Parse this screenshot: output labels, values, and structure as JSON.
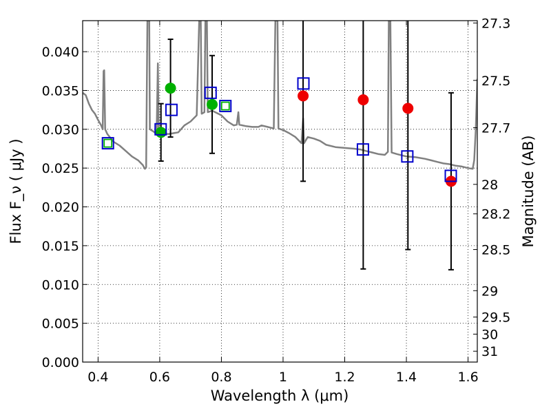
{
  "chart_data": {
    "type": "scatter",
    "xlabel": "Wavelength  λ (μm)",
    "ylabel": "Flux  F_ν  ( μJy )",
    "y2label": "Magnitude (AB)",
    "xlim": [
      0.35,
      1.63
    ],
    "ylim": [
      0.0,
      0.044
    ],
    "grid": true,
    "xticks": [
      0.4,
      0.6,
      0.8,
      1.0,
      1.2,
      1.4,
      1.6
    ],
    "xtick_labels": [
      "0.4",
      "0.6",
      "0.8",
      "1",
      "1.2",
      "1.4",
      "1.6"
    ],
    "yticks": [
      0.0,
      0.005,
      0.01,
      0.015,
      0.02,
      0.025,
      0.03,
      0.035,
      0.04
    ],
    "ytick_labels": [
      "0.000",
      "0.005",
      "0.010",
      "0.015",
      "0.020",
      "0.025",
      "0.030",
      "0.035",
      "0.040"
    ],
    "y2ticks": [
      {
        "flux": 0.0437,
        "label": "27.3"
      },
      {
        "flux": 0.0363,
        "label": "27.5"
      },
      {
        "flux": 0.0302,
        "label": "27.7"
      },
      {
        "flux": 0.0229,
        "label": "28"
      },
      {
        "flux": 0.0191,
        "label": "28.2"
      },
      {
        "flux": 0.0145,
        "label": "28.5"
      },
      {
        "flux": 0.0092,
        "label": "29"
      },
      {
        "flux": 0.0058,
        "label": "29.5"
      },
      {
        "flux": 0.0036,
        "label": "30"
      },
      {
        "flux": 0.0014,
        "label": "31"
      }
    ],
    "colors": {
      "model": "#808080",
      "green": "#00b000",
      "red": "#ee0000",
      "box": "#0000cc",
      "err": "#000000"
    },
    "model_sed": [
      [
        0.35,
        0.0347
      ],
      [
        0.36,
        0.0344
      ],
      [
        0.37,
        0.0333
      ],
      [
        0.38,
        0.0325
      ],
      [
        0.39,
        0.032
      ],
      [
        0.4,
        0.0312
      ],
      [
        0.41,
        0.0305
      ],
      [
        0.415,
        0.03
      ],
      [
        0.418,
        0.0375
      ],
      [
        0.42,
        0.0376
      ],
      [
        0.423,
        0.03
      ],
      [
        0.43,
        0.0294
      ],
      [
        0.45,
        0.0284
      ],
      [
        0.47,
        0.0279
      ],
      [
        0.49,
        0.0272
      ],
      [
        0.51,
        0.0265
      ],
      [
        0.53,
        0.026
      ],
      [
        0.545,
        0.0254
      ],
      [
        0.552,
        0.0249
      ],
      [
        0.556,
        0.0251
      ],
      [
        0.56,
        0.044
      ],
      [
        0.566,
        0.044
      ],
      [
        0.568,
        0.03
      ],
      [
        0.58,
        0.0297
      ],
      [
        0.59,
        0.0294
      ],
      [
        0.594,
        0.0385
      ],
      [
        0.597,
        0.0293
      ],
      [
        0.61,
        0.0293
      ],
      [
        0.62,
        0.0294
      ],
      [
        0.63,
        0.0294
      ],
      [
        0.66,
        0.0296
      ],
      [
        0.68,
        0.0305
      ],
      [
        0.7,
        0.031
      ],
      [
        0.72,
        0.0318
      ],
      [
        0.728,
        0.044
      ],
      [
        0.733,
        0.044
      ],
      [
        0.736,
        0.032
      ],
      [
        0.745,
        0.0322
      ],
      [
        0.748,
        0.044
      ],
      [
        0.753,
        0.044
      ],
      [
        0.756,
        0.0322
      ],
      [
        0.77,
        0.0324
      ],
      [
        0.8,
        0.0318
      ],
      [
        0.82,
        0.031
      ],
      [
        0.84,
        0.0305
      ],
      [
        0.85,
        0.0306
      ],
      [
        0.855,
        0.0322
      ],
      [
        0.858,
        0.0306
      ],
      [
        0.88,
        0.0304
      ],
      [
        0.9,
        0.0303
      ],
      [
        0.92,
        0.0303
      ],
      [
        0.93,
        0.0305
      ],
      [
        0.95,
        0.0303
      ],
      [
        0.97,
        0.0301
      ],
      [
        0.975,
        0.044
      ],
      [
        0.982,
        0.044
      ],
      [
        0.985,
        0.0301
      ],
      [
        1.0,
        0.0299
      ],
      [
        1.02,
        0.0295
      ],
      [
        1.04,
        0.029
      ],
      [
        1.06,
        0.0282
      ],
      [
        1.065,
        0.0314
      ],
      [
        1.068,
        0.0282
      ],
      [
        1.08,
        0.029
      ],
      [
        1.1,
        0.0288
      ],
      [
        1.12,
        0.0285
      ],
      [
        1.14,
        0.028
      ],
      [
        1.17,
        0.0277
      ],
      [
        1.2,
        0.0276
      ],
      [
        1.23,
        0.0275
      ],
      [
        1.25,
        0.0274
      ],
      [
        1.27,
        0.0272
      ],
      [
        1.29,
        0.027
      ],
      [
        1.31,
        0.0268
      ],
      [
        1.33,
        0.0267
      ],
      [
        1.34,
        0.0271
      ],
      [
        1.343,
        0.044
      ],
      [
        1.348,
        0.044
      ],
      [
        1.352,
        0.027
      ],
      [
        1.37,
        0.0268
      ],
      [
        1.4,
        0.0265
      ],
      [
        1.43,
        0.0264
      ],
      [
        1.46,
        0.0262
      ],
      [
        1.48,
        0.026
      ],
      [
        1.5,
        0.0258
      ],
      [
        1.52,
        0.0256
      ],
      [
        1.54,
        0.0255
      ],
      [
        1.56,
        0.0253
      ],
      [
        1.58,
        0.0252
      ],
      [
        1.6,
        0.025
      ],
      [
        1.615,
        0.0249
      ],
      [
        1.62,
        0.026
      ],
      [
        1.625,
        0.03
      ],
      [
        1.63,
        0.0365
      ]
    ],
    "series": [
      {
        "marker": "circle",
        "color": "green",
        "points": [
          {
            "x": 0.604,
            "y": 0.0296,
            "err": 0.0037
          },
          {
            "x": 0.635,
            "y": 0.0353,
            "err": 0.0063
          },
          {
            "x": 0.77,
            "y": 0.0332,
            "err": 0.0063
          }
        ]
      },
      {
        "marker": "circle",
        "color": "red",
        "points": [
          {
            "x": 1.065,
            "y": 0.0343,
            "err": 0.011
          },
          {
            "x": 1.26,
            "y": 0.0338,
            "err": 0.0218
          },
          {
            "x": 1.405,
            "y": 0.0327,
            "err": 0.0182
          },
          {
            "x": 1.545,
            "y": 0.0233,
            "err": 0.0114
          }
        ]
      },
      {
        "marker": "square",
        "color": "box",
        "points": [
          {
            "x": 0.432,
            "y": 0.0282
          },
          {
            "x": 0.603,
            "y": 0.03
          },
          {
            "x": 0.638,
            "y": 0.0325
          },
          {
            "x": 0.765,
            "y": 0.0347
          },
          {
            "x": 0.813,
            "y": 0.033
          },
          {
            "x": 1.066,
            "y": 0.0359
          },
          {
            "x": 1.259,
            "y": 0.0274
          },
          {
            "x": 1.403,
            "y": 0.0265
          },
          {
            "x": 1.544,
            "y": 0.024
          }
        ]
      },
      {
        "marker": "square-inner",
        "color": "green",
        "points": [
          {
            "x": 0.432,
            "y": 0.0282
          },
          {
            "x": 0.813,
            "y": 0.033
          }
        ]
      }
    ]
  }
}
